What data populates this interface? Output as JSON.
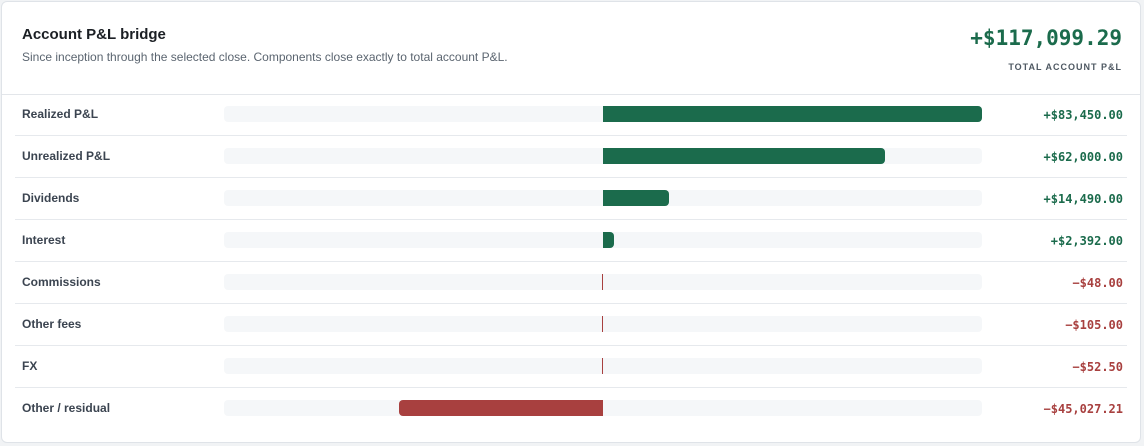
{
  "header": {
    "title": "Account P&L bridge",
    "subtitle": "Since inception through the selected close. Components close exactly to total account P&L.",
    "total_value": "+$117,099.29",
    "total_label": "TOTAL ACCOUNT P&L"
  },
  "colors": {
    "positive": "#1b6b4c",
    "negative": "#a8403f",
    "track": "#f5f7f9"
  },
  "chart_data": {
    "type": "bar",
    "orientation": "horizontal",
    "title": "Account P&L bridge",
    "categories": [
      "Realized P&L",
      "Unrealized P&L",
      "Dividends",
      "Interest",
      "Commissions",
      "Other fees",
      "FX",
      "Other / residual"
    ],
    "values": [
      83450.0,
      62000.0,
      14490.0,
      2392.0,
      -48.0,
      -105.0,
      -52.5,
      -45027.21
    ],
    "value_labels": [
      "+$83,450.00",
      "+$62,000.00",
      "+$14,490.00",
      "+$2,392.00",
      "−$48.00",
      "−$105.00",
      "−$52.50",
      "−$45,027.21"
    ],
    "xlim": [
      -83450,
      83450
    ]
  }
}
